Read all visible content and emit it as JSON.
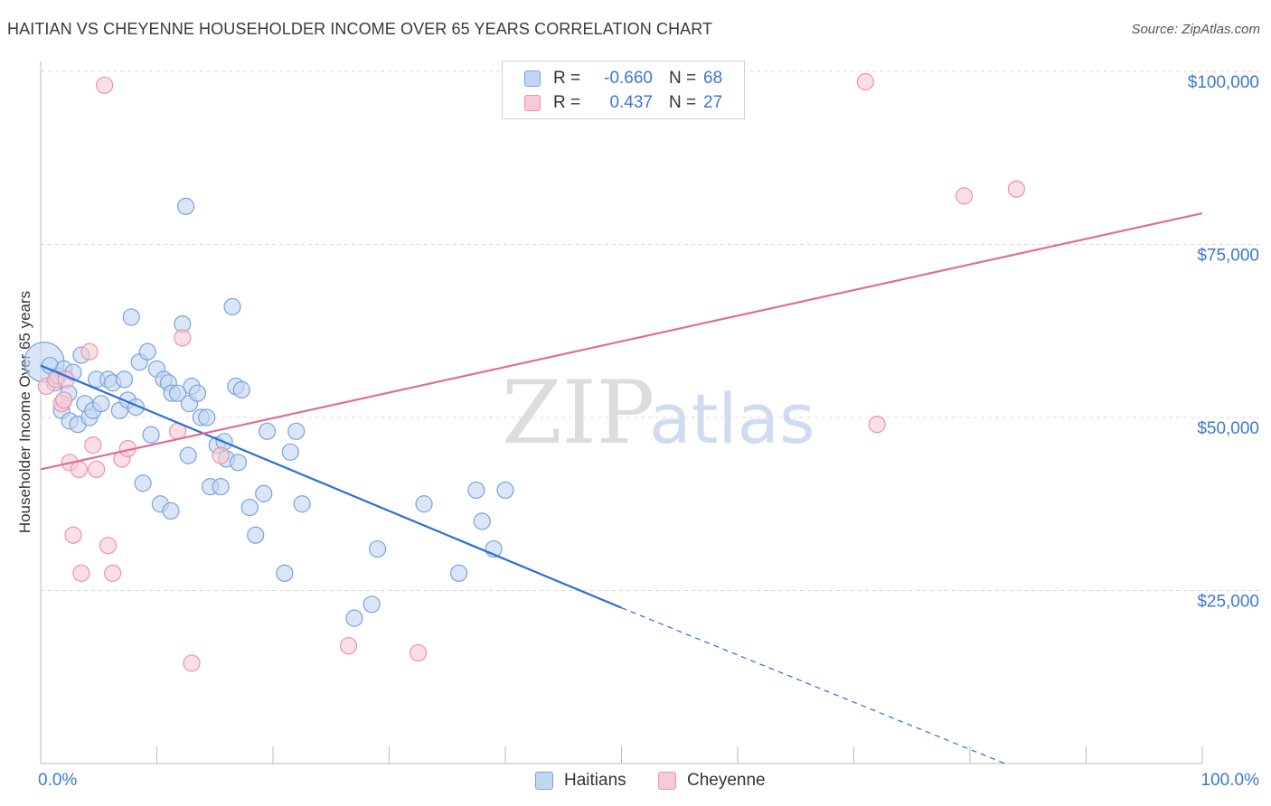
{
  "title": "HAITIAN VS CHEYENNE HOUSEHOLDER INCOME OVER 65 YEARS CORRELATION CHART",
  "source": "Source: ZipAtlas.com",
  "watermark": {
    "zip": "ZIP",
    "atlas": "atlas"
  },
  "colors": {
    "blue_fill": "#c2d6f2",
    "blue_stroke": "#7aa3dc",
    "blue_line": "#2a6fd6",
    "pink_fill": "#f8c9d6",
    "pink_stroke": "#ec93ac",
    "pink_line": "#e26d93",
    "grid": "#d8d8d8",
    "tick_text": "#3b78d4"
  },
  "legend": {
    "rows": [
      {
        "r_label": "R =",
        "r_value": "-0.660",
        "n_label": "N =",
        "n_value": "68"
      },
      {
        "r_label": "R =",
        "r_value": "0.437",
        "n_label": "N =",
        "n_value": "27"
      }
    ]
  },
  "bottom_legend": [
    "Haitians",
    "Cheyenne"
  ],
  "chart_data": {
    "type": "scatter",
    "title": "HAITIAN VS CHEYENNE HOUSEHOLDER INCOME OVER 65 YEARS CORRELATION CHART",
    "xlabel": "",
    "ylabel": "Householder Income Over 65 years",
    "xlim": [
      0,
      100
    ],
    "ylim": [
      0,
      102000
    ],
    "x_tick_labels": [
      "0.0%",
      "100.0%"
    ],
    "y_ticks": [
      25000,
      50000,
      75000,
      100000
    ],
    "y_tick_labels": [
      "$25,000",
      "$50,000",
      "$75,000",
      "$100,000"
    ],
    "grid": "horizontal dashed",
    "legend_placement": "top-center",
    "series": [
      {
        "name": "Haitians",
        "r": -0.66,
        "n": 68,
        "trend": {
          "x0": 0,
          "y0": 57500,
          "x1": 50,
          "y1": 22500,
          "dashed_to_x": 83,
          "dashed_to_y": 0
        },
        "points": [
          [
            0.3,
            58000
          ],
          [
            0.8,
            57500
          ],
          [
            1.2,
            55000
          ],
          [
            1.5,
            56000
          ],
          [
            1.8,
            51000
          ],
          [
            2.0,
            57000
          ],
          [
            2.4,
            53500
          ],
          [
            2.5,
            49500
          ],
          [
            2.8,
            56500
          ],
          [
            3.2,
            49000
          ],
          [
            3.5,
            59000
          ],
          [
            3.8,
            52000
          ],
          [
            4.2,
            50000
          ],
          [
            4.5,
            51000
          ],
          [
            4.8,
            55500
          ],
          [
            5.2,
            52000
          ],
          [
            5.8,
            55500
          ],
          [
            6.2,
            55000
          ],
          [
            6.8,
            51000
          ],
          [
            7.2,
            55500
          ],
          [
            7.5,
            52500
          ],
          [
            7.8,
            64500
          ],
          [
            8.2,
            51500
          ],
          [
            8.5,
            58000
          ],
          [
            8.8,
            40500
          ],
          [
            9.2,
            59500
          ],
          [
            9.5,
            47500
          ],
          [
            10.0,
            57000
          ],
          [
            10.3,
            37500
          ],
          [
            10.6,
            55500
          ],
          [
            11.0,
            55000
          ],
          [
            11.3,
            53500
          ],
          [
            11.2,
            36500
          ],
          [
            11.8,
            53500
          ],
          [
            12.2,
            63500
          ],
          [
            12.5,
            80500
          ],
          [
            12.7,
            44500
          ],
          [
            12.8,
            52000
          ],
          [
            13.0,
            54500
          ],
          [
            13.5,
            53500
          ],
          [
            13.8,
            50000
          ],
          [
            14.3,
            50000
          ],
          [
            14.6,
            40000
          ],
          [
            15.2,
            46000
          ],
          [
            15.5,
            40000
          ],
          [
            15.8,
            46500
          ],
          [
            16.0,
            44000
          ],
          [
            16.5,
            66000
          ],
          [
            16.8,
            54500
          ],
          [
            17.0,
            43500
          ],
          [
            17.3,
            54000
          ],
          [
            18.0,
            37000
          ],
          [
            18.5,
            33000
          ],
          [
            19.2,
            39000
          ],
          [
            19.5,
            48000
          ],
          [
            21.0,
            27500
          ],
          [
            21.5,
            45000
          ],
          [
            22.0,
            48000
          ],
          [
            22.5,
            37500
          ],
          [
            27.0,
            21000
          ],
          [
            28.5,
            23000
          ],
          [
            29.0,
            31000
          ],
          [
            33.0,
            37500
          ],
          [
            36.0,
            27500
          ],
          [
            37.5,
            39500
          ],
          [
            38.0,
            35000
          ],
          [
            39.0,
            31000
          ],
          [
            40.0,
            39500
          ]
        ]
      },
      {
        "name": "Cheyenne",
        "r": 0.437,
        "n": 27,
        "trend": {
          "x0": 0,
          "y0": 42500,
          "x1": 100,
          "y1": 79500
        },
        "points": [
          [
            0.5,
            54500
          ],
          [
            1.3,
            55500
          ],
          [
            1.8,
            52000
          ],
          [
            2.0,
            52500
          ],
          [
            2.2,
            55500
          ],
          [
            2.5,
            43500
          ],
          [
            2.8,
            33000
          ],
          [
            3.3,
            42500
          ],
          [
            3.5,
            27500
          ],
          [
            4.2,
            59500
          ],
          [
            4.5,
            46000
          ],
          [
            4.8,
            42500
          ],
          [
            5.5,
            98000
          ],
          [
            5.8,
            31500
          ],
          [
            6.2,
            27500
          ],
          [
            7.0,
            44000
          ],
          [
            7.5,
            45500
          ],
          [
            11.8,
            48000
          ],
          [
            12.2,
            61500
          ],
          [
            13.0,
            14500
          ],
          [
            15.5,
            44500
          ],
          [
            26.5,
            17000
          ],
          [
            32.5,
            16000
          ],
          [
            71.0,
            98500
          ],
          [
            72.0,
            49000
          ],
          [
            79.5,
            82000
          ],
          [
            84.0,
            83000
          ]
        ]
      }
    ]
  }
}
